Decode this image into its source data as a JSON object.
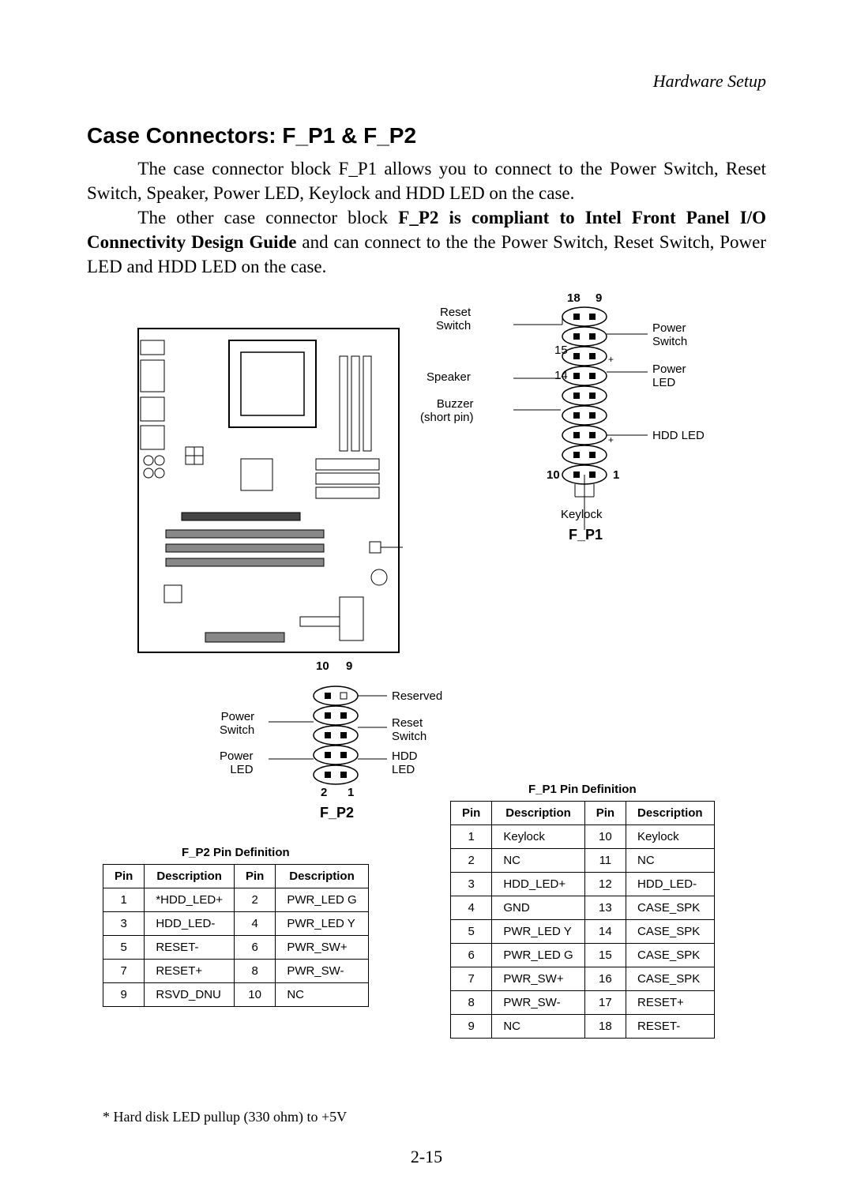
{
  "header_context": "Hardware Setup",
  "section_title": "Case Connectors: F_P1 & F_P2",
  "paragraph1": "The case connector block F_P1 allows you to connect to the Power Switch, Reset Switch, Speaker, Power LED, Keylock and HDD LED on the case.",
  "paragraph2_lead": "The other case connector block ",
  "paragraph2_bold": "F_P2 is compliant to Intel Front Panel I/O Connectivity Design Guide",
  "paragraph2_tail": " and can connect to the the Power Switch, Reset Switch, Power LED and HDD LED on the case.",
  "fp1": {
    "name": "F_P1",
    "labels": {
      "reset_switch": "Reset\nSwitch",
      "power_switch": "Power\nSwitch",
      "speaker": "Speaker",
      "power_led": "Power\nLED",
      "buzzer": "Buzzer\n(short pin)",
      "hdd_led": "HDD LED",
      "keylock": "Keylock"
    },
    "nums": {
      "n18": "18",
      "n9": "9",
      "n15": "15",
      "n14": "14",
      "n10": "10",
      "n1": "1"
    }
  },
  "fp2": {
    "name": "F_P2",
    "labels": {
      "reserved": "Reserved",
      "power_switch": "Power\nSwitch",
      "reset_switch": "Reset\nSwitch",
      "power_led": "Power\nLED",
      "hdd_led": "HDD\nLED"
    },
    "nums": {
      "n10": "10",
      "n9": "9",
      "n2": "2",
      "n1": "1"
    }
  },
  "table_fp2": {
    "caption": "F_P2 Pin Definition",
    "headers": [
      "Pin",
      "Description",
      "Pin",
      "Description"
    ],
    "rows": [
      [
        "1",
        "*HDD_LED+",
        "2",
        "PWR_LED G"
      ],
      [
        "3",
        "HDD_LED-",
        "4",
        "PWR_LED Y"
      ],
      [
        "5",
        "RESET-",
        "6",
        "PWR_SW+"
      ],
      [
        "7",
        "RESET+",
        "8",
        "PWR_SW-"
      ],
      [
        "9",
        "RSVD_DNU",
        "10",
        "NC"
      ]
    ]
  },
  "table_fp1": {
    "caption": "F_P1 Pin Definition",
    "headers": [
      "Pin",
      "Description",
      "Pin",
      "Description"
    ],
    "rows": [
      [
        "1",
        "Keylock",
        "10",
        "Keylock"
      ],
      [
        "2",
        "NC",
        "11",
        "NC"
      ],
      [
        "3",
        "HDD_LED+",
        "12",
        "HDD_LED-"
      ],
      [
        "4",
        "GND",
        "13",
        "CASE_SPK"
      ],
      [
        "5",
        "PWR_LED Y",
        "14",
        "CASE_SPK"
      ],
      [
        "6",
        "PWR_LED G",
        "15",
        "CASE_SPK"
      ],
      [
        "7",
        "PWR_SW+",
        "16",
        "CASE_SPK"
      ],
      [
        "8",
        "PWR_SW-",
        "17",
        "RESET+"
      ],
      [
        "9",
        "NC",
        "18",
        "RESET-"
      ]
    ]
  },
  "footnote": "* Hard disk LED pullup (330 ohm) to +5V",
  "page_num": "2-15",
  "colors": {
    "text": "#000000",
    "bg": "#ffffff",
    "border": "#000000"
  }
}
